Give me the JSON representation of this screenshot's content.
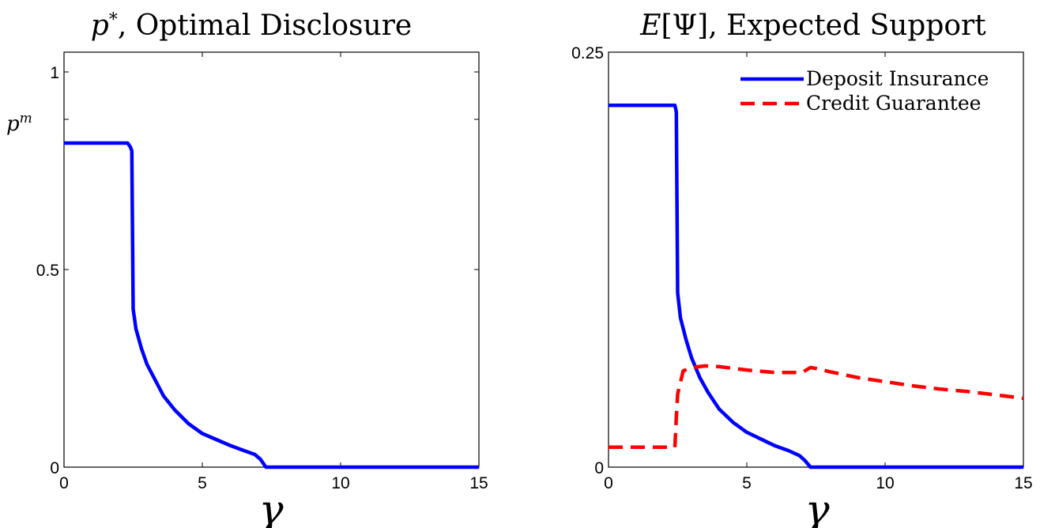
{
  "chart_data": [
    {
      "type": "line",
      "title": "p*, Optimal Disclosure",
      "title_parts": {
        "var": "p",
        "sup": "*",
        "rest": ", Optimal Disclosure"
      },
      "xlabel": "γ",
      "ylabel": "p^m",
      "ylabel_parts": {
        "base": "p",
        "sup": "m"
      },
      "xlim": [
        0,
        15
      ],
      "ylim": [
        0,
        1
      ],
      "xticks": [
        0,
        5,
        10,
        15
      ],
      "xtick_labels": [
        "0",
        "5",
        "10",
        "15"
      ],
      "yticks": [
        0,
        0.5,
        1
      ],
      "ytick_labels": [
        "0",
        "0.5",
        "1"
      ],
      "ylabel_at": 0.82,
      "grid": false,
      "legend": null,
      "series": [
        {
          "color": "#0000ff",
          "style": "solid",
          "x": [
            0,
            2.3,
            2.4,
            2.45,
            2.5,
            2.6,
            2.8,
            3.0,
            3.3,
            3.6,
            4.0,
            4.5,
            5.0,
            5.5,
            6.0,
            6.5,
            6.9,
            7.1,
            7.3,
            8,
            10,
            12,
            15
          ],
          "y": [
            0.82,
            0.82,
            0.81,
            0.8,
            0.4,
            0.35,
            0.3,
            0.26,
            0.22,
            0.18,
            0.145,
            0.11,
            0.085,
            0.07,
            0.055,
            0.042,
            0.032,
            0.02,
            0,
            0,
            0,
            0,
            0
          ]
        }
      ]
    },
    {
      "type": "line",
      "title": "E[Ψ], Expected Support",
      "title_parts": {
        "var": "E",
        "rest": "[Ψ], Expected Support"
      },
      "xlabel": "γ",
      "ylabel": "",
      "xlim": [
        0,
        15
      ],
      "ylim": [
        0,
        0.25
      ],
      "xticks": [
        0,
        5,
        10,
        15
      ],
      "xtick_labels": [
        "0",
        "5",
        "10",
        "15"
      ],
      "yticks": [
        0,
        0.25
      ],
      "ytick_labels": [
        "0",
        "0.25"
      ],
      "grid": false,
      "legend": "top-right",
      "series": [
        {
          "name": "Deposit Insurance",
          "color": "#0000ff",
          "style": "solid",
          "x": [
            0,
            2.3,
            2.4,
            2.45,
            2.5,
            2.6,
            2.8,
            3.0,
            3.3,
            3.6,
            4.0,
            4.5,
            5.0,
            5.5,
            6.0,
            6.5,
            6.9,
            7.1,
            7.3,
            8,
            10,
            12,
            15
          ],
          "y": [
            0.218,
            0.218,
            0.218,
            0.214,
            0.105,
            0.09,
            0.077,
            0.066,
            0.054,
            0.045,
            0.035,
            0.027,
            0.021,
            0.017,
            0.013,
            0.01,
            0.007,
            0.004,
            0,
            0,
            0,
            0,
            0
          ]
        },
        {
          "name": "Credit Guarantee",
          "color": "#ff0000",
          "style": "dashed",
          "x": [
            0,
            2.3,
            2.4,
            2.45,
            2.5,
            2.7,
            3.0,
            3.5,
            4.0,
            5.0,
            6.0,
            7.0,
            7.3,
            7.5,
            8.0,
            9.0,
            10.0,
            11.0,
            12.0,
            13.0,
            14.0,
            15.0
          ],
          "y": [
            0.012,
            0.012,
            0.012,
            0.03,
            0.044,
            0.058,
            0.06,
            0.061,
            0.0605,
            0.0585,
            0.057,
            0.057,
            0.06,
            0.0595,
            0.0575,
            0.054,
            0.0515,
            0.049,
            0.047,
            0.0455,
            0.0435,
            0.0415
          ]
        }
      ]
    }
  ]
}
